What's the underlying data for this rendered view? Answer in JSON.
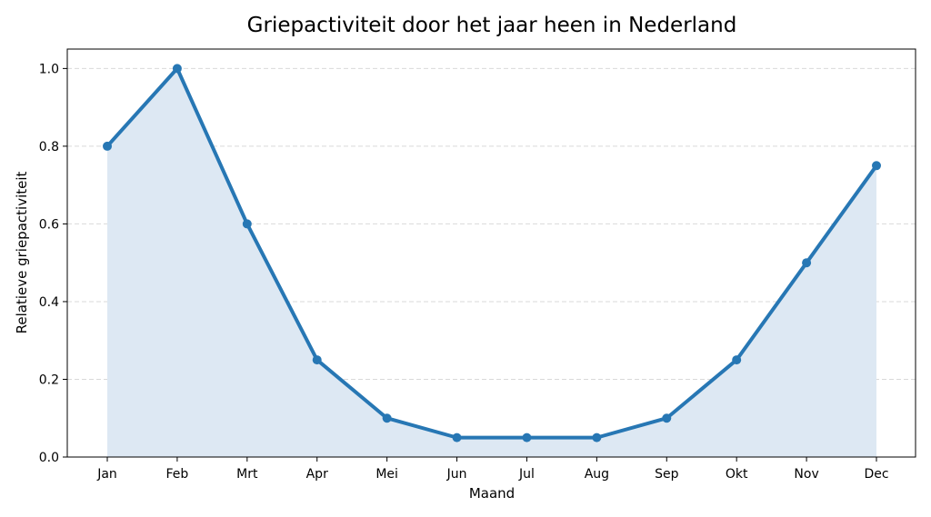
{
  "chart_data": {
    "type": "area",
    "title": "Griepactiviteit door het jaar heen in Nederland",
    "xlabel": "Maand",
    "ylabel": "Relatieve griepactiviteit",
    "categories": [
      "Jan",
      "Feb",
      "Mrt",
      "Apr",
      "Mei",
      "Jun",
      "Jul",
      "Aug",
      "Sep",
      "Okt",
      "Nov",
      "Dec"
    ],
    "values": [
      0.8,
      1.0,
      0.6,
      0.25,
      0.1,
      0.05,
      0.05,
      0.05,
      0.1,
      0.25,
      0.5,
      0.75
    ],
    "ylim": [
      0,
      1.05
    ],
    "yticks": [
      "0.0",
      "0.2",
      "0.4",
      "0.6",
      "0.8",
      "1.0"
    ],
    "grid": "horizontal-dashed",
    "line_color": "#2777b4",
    "fill_color": "#dde8f3",
    "markers": true
  }
}
